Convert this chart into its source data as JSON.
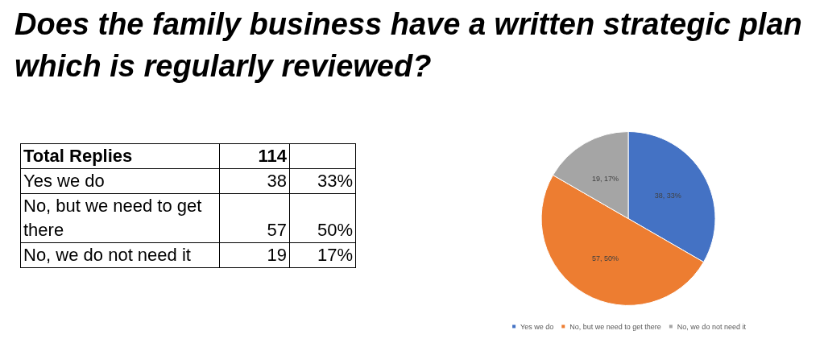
{
  "chart_data": [
    {
      "type": "other",
      "annotations": [
        "Total Replies",
        "114",
        "Yes we do",
        "38",
        "33%",
        "No, but we need to get there",
        "57",
        "50%",
        "No, we do not need it",
        "19",
        "17%"
      ]
    },
    {
      "type": "pie",
      "title": "Does the family business have a written strategic plan which is regularly reviewed?",
      "categories": [
        "Yes we do",
        "No, but we need to get there",
        "No, we do not need it"
      ],
      "values": [
        38,
        57,
        19
      ],
      "colors": [
        "#4472c4",
        "#ed7d31",
        "#a5a5a5"
      ],
      "value_labels": [
        "38, 33%",
        "57, 50%",
        "19, 17%"
      ],
      "legend": "bottom"
    }
  ]
}
